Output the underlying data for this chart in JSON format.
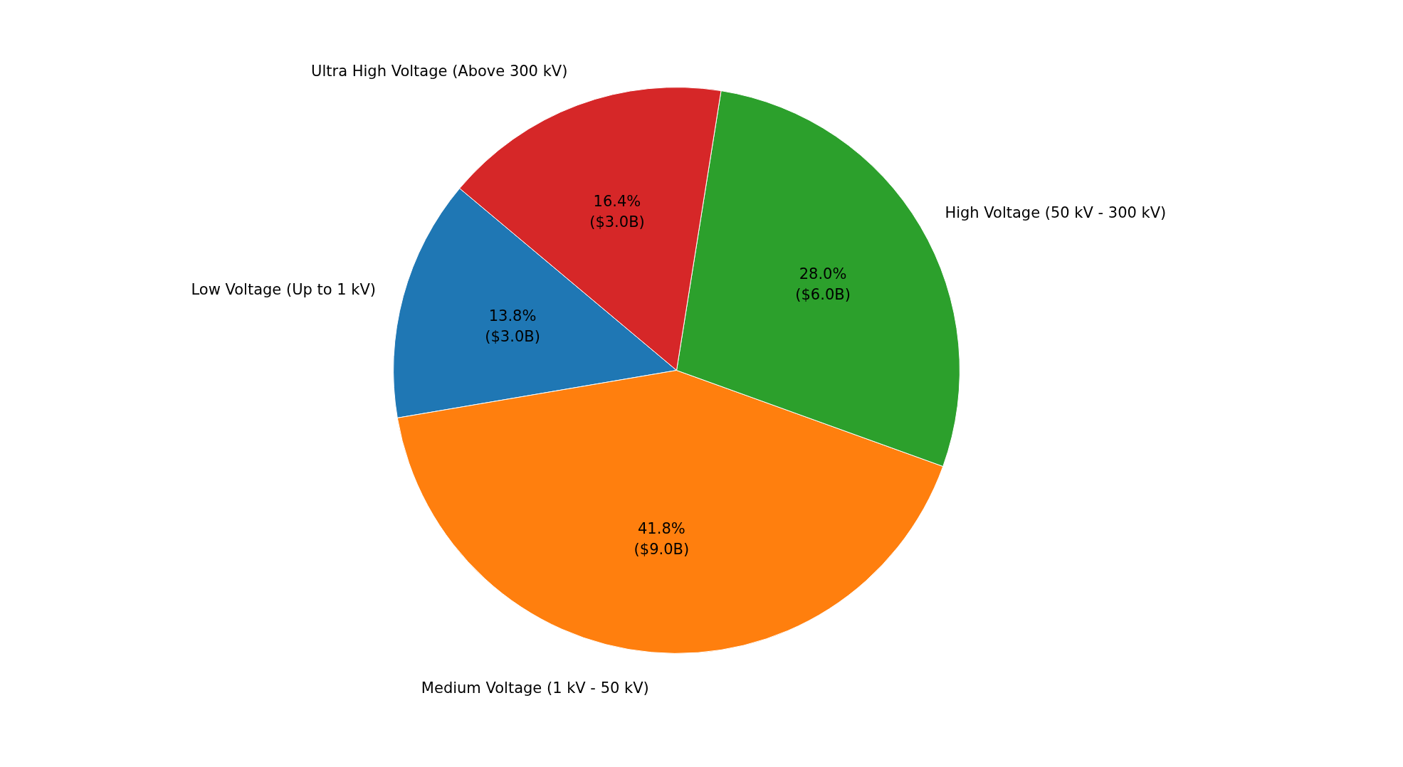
{
  "chart_data": {
    "type": "pie",
    "categories": [
      "Low Voltage (Up to 1 kV)",
      "Medium Voltage (1 kV - 50 kV)",
      "High Voltage (50 kV - 300 kV)",
      "Ultra High Voltage (Above 300 kV)"
    ],
    "values": [
      13.8,
      41.8,
      28.0,
      16.4
    ],
    "colors": [
      "#1f77b4",
      "#ff7f0e",
      "#2ca02c",
      "#d62728"
    ],
    "value_labels": [
      "13.8%\n($3.0B)",
      "41.8%\n($9.0B)",
      "28.0%\n($6.0B)",
      "16.4%\n($3.0B)"
    ]
  }
}
